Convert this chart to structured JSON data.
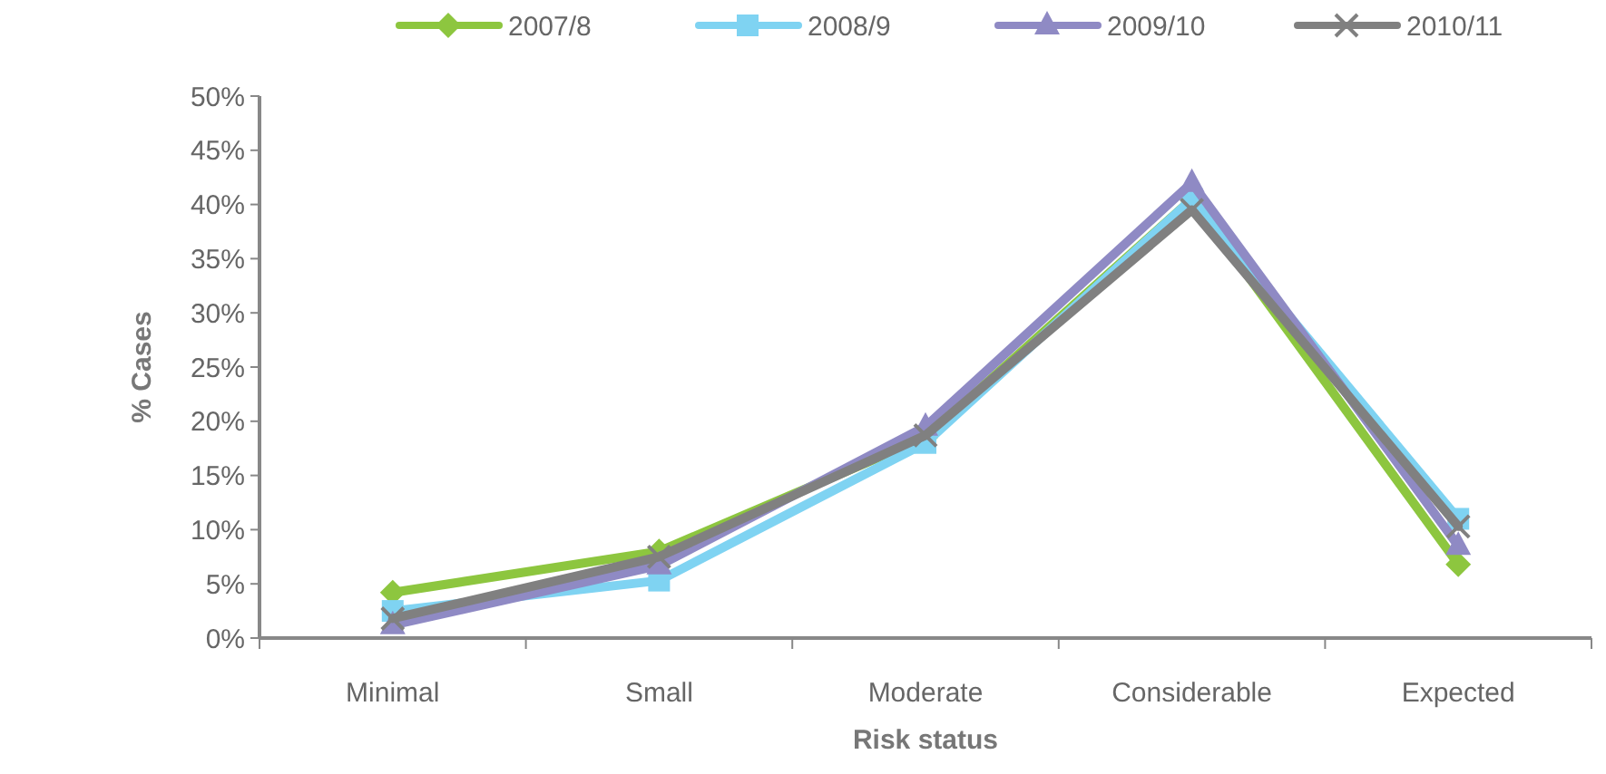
{
  "chart_data": {
    "type": "line",
    "xlabel": "Risk status",
    "ylabel": "% Cases",
    "categories": [
      "Minimal",
      "Small",
      "Moderate",
      "Considerable",
      "Expected"
    ],
    "series": [
      {
        "name": "2007/8",
        "color": "#8dc63f",
        "marker": "diamond",
        "values": [
          4.2,
          8,
          18.5,
          40.5,
          6.8
        ]
      },
      {
        "name": "2008/9",
        "color": "#7fd3f2",
        "marker": "square",
        "values": [
          2.5,
          5.3,
          18,
          40.5,
          11
        ]
      },
      {
        "name": "2009/10",
        "color": "#8f8ac4",
        "marker": "triangle",
        "values": [
          1.2,
          6.7,
          19.5,
          42,
          8.5
        ]
      },
      {
        "name": "2010/11",
        "color": "#808080",
        "marker": "cross",
        "values": [
          1.8,
          7.5,
          18.7,
          39.5,
          10.3
        ]
      }
    ],
    "ylim": [
      0,
      50
    ],
    "yticks": [
      {
        "value": 0,
        "label": "0%"
      },
      {
        "value": 5,
        "label": "5%"
      },
      {
        "value": 10,
        "label": "10%"
      },
      {
        "value": 15,
        "label": "15%"
      },
      {
        "value": 20,
        "label": "20%"
      },
      {
        "value": 25,
        "label": "25%"
      },
      {
        "value": 30,
        "label": "30%"
      },
      {
        "value": 35,
        "label": "35%"
      },
      {
        "value": 40,
        "label": "40%"
      },
      {
        "value": 45,
        "label": "45%"
      },
      {
        "value": 50,
        "label": "50%"
      }
    ],
    "grid": false,
    "legend": "top"
  }
}
